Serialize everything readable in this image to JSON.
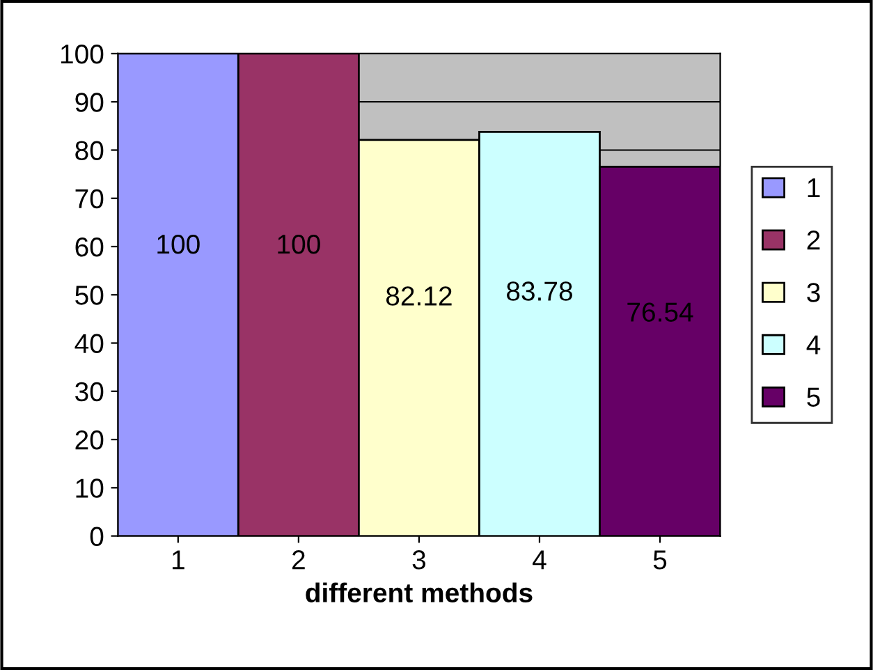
{
  "chart_data": {
    "type": "bar",
    "xlabel": "different methods",
    "categories": [
      "1",
      "2",
      "3",
      "4",
      "5"
    ],
    "series": [
      {
        "name": "1",
        "color": "#9999ff",
        "values": [
          100,
          null,
          null,
          null,
          null
        ]
      },
      {
        "name": "2",
        "color": "#993366",
        "values": [
          null,
          100,
          null,
          null,
          null
        ]
      },
      {
        "name": "3",
        "color": "#ffffcc",
        "values": [
          null,
          null,
          82.12,
          null,
          null
        ]
      },
      {
        "name": "4",
        "color": "#ccffff",
        "values": [
          null,
          null,
          null,
          83.78,
          null
        ]
      },
      {
        "name": "5",
        "color": "#660066",
        "values": [
          null,
          null,
          null,
          null,
          76.54
        ]
      }
    ],
    "ylim": [
      0,
      100
    ],
    "yticks": [
      0,
      10,
      20,
      30,
      40,
      50,
      60,
      70,
      80,
      90,
      100
    ],
    "grid": "y",
    "legend": "right",
    "data_labels": true
  }
}
